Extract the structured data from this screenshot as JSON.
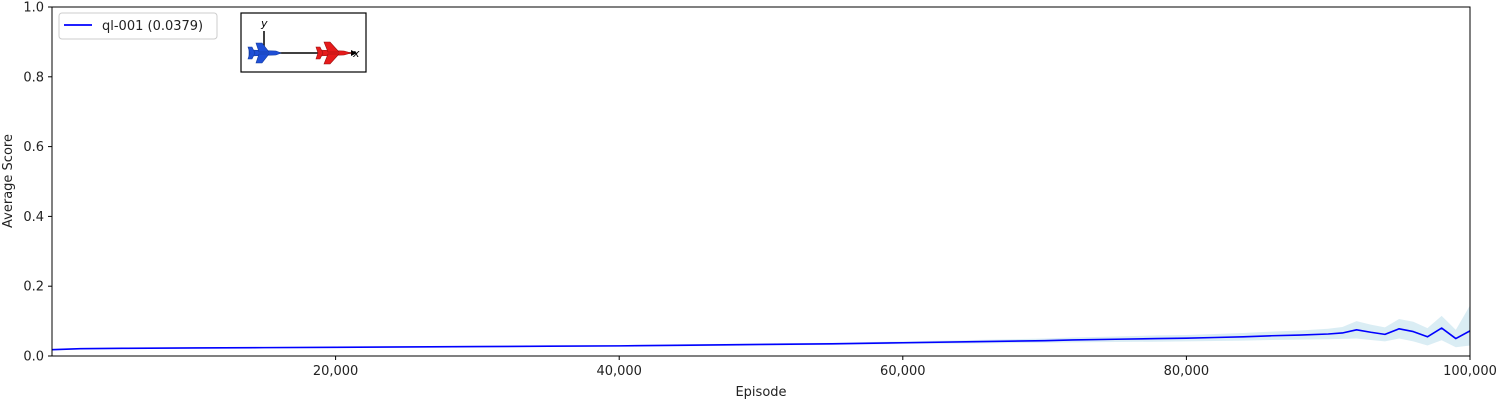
{
  "chart_data": {
    "type": "line",
    "title": "",
    "xlabel": "Episode",
    "ylabel": "Average Score",
    "xlim": [
      0,
      100000
    ],
    "ylim": [
      0,
      1.0
    ],
    "x_ticks": [
      20000,
      40000,
      60000,
      80000,
      100000
    ],
    "x_tick_labels": [
      "20,000",
      "40,000",
      "60,000",
      "80,000",
      "100,000"
    ],
    "y_ticks": [
      0.0,
      0.2,
      0.4,
      0.6,
      0.8,
      1.0
    ],
    "y_tick_labels": [
      "0.0",
      "0.2",
      "0.4",
      "0.6",
      "0.8",
      "1.0"
    ],
    "grid": false,
    "legend_position": "top-left",
    "series": [
      {
        "name": "ql-001 (0.0379)",
        "color": "#0000ff",
        "band_color": "#add8e6",
        "x": [
          0,
          2000,
          5000,
          10000,
          15000,
          20000,
          25000,
          30000,
          35000,
          40000,
          45000,
          50000,
          55000,
          60000,
          65000,
          70000,
          72000,
          75000,
          78000,
          80000,
          82000,
          84000,
          86000,
          88000,
          90000,
          91000,
          92000,
          93000,
          94000,
          95000,
          96000,
          97000,
          98000,
          99000,
          100000
        ],
        "y": [
          0.018,
          0.021,
          0.022,
          0.023,
          0.024,
          0.025,
          0.026,
          0.027,
          0.028,
          0.029,
          0.031,
          0.033,
          0.035,
          0.038,
          0.041,
          0.044,
          0.046,
          0.048,
          0.05,
          0.051,
          0.053,
          0.055,
          0.058,
          0.06,
          0.063,
          0.066,
          0.075,
          0.068,
          0.062,
          0.078,
          0.07,
          0.055,
          0.08,
          0.05,
          0.072
        ],
        "band_low": [
          0.016,
          0.019,
          0.02,
          0.021,
          0.022,
          0.023,
          0.024,
          0.025,
          0.026,
          0.027,
          0.028,
          0.03,
          0.032,
          0.034,
          0.036,
          0.038,
          0.039,
          0.04,
          0.041,
          0.042,
          0.043,
          0.044,
          0.046,
          0.047,
          0.048,
          0.049,
          0.05,
          0.046,
          0.042,
          0.05,
          0.042,
          0.03,
          0.045,
          0.025,
          0.03
        ],
        "band_high": [
          0.02,
          0.023,
          0.024,
          0.025,
          0.026,
          0.027,
          0.028,
          0.029,
          0.03,
          0.031,
          0.034,
          0.036,
          0.038,
          0.042,
          0.046,
          0.05,
          0.053,
          0.056,
          0.059,
          0.06,
          0.063,
          0.066,
          0.07,
          0.073,
          0.078,
          0.083,
          0.1,
          0.09,
          0.082,
          0.106,
          0.098,
          0.08,
          0.115,
          0.075,
          0.145
        ]
      }
    ]
  }
}
